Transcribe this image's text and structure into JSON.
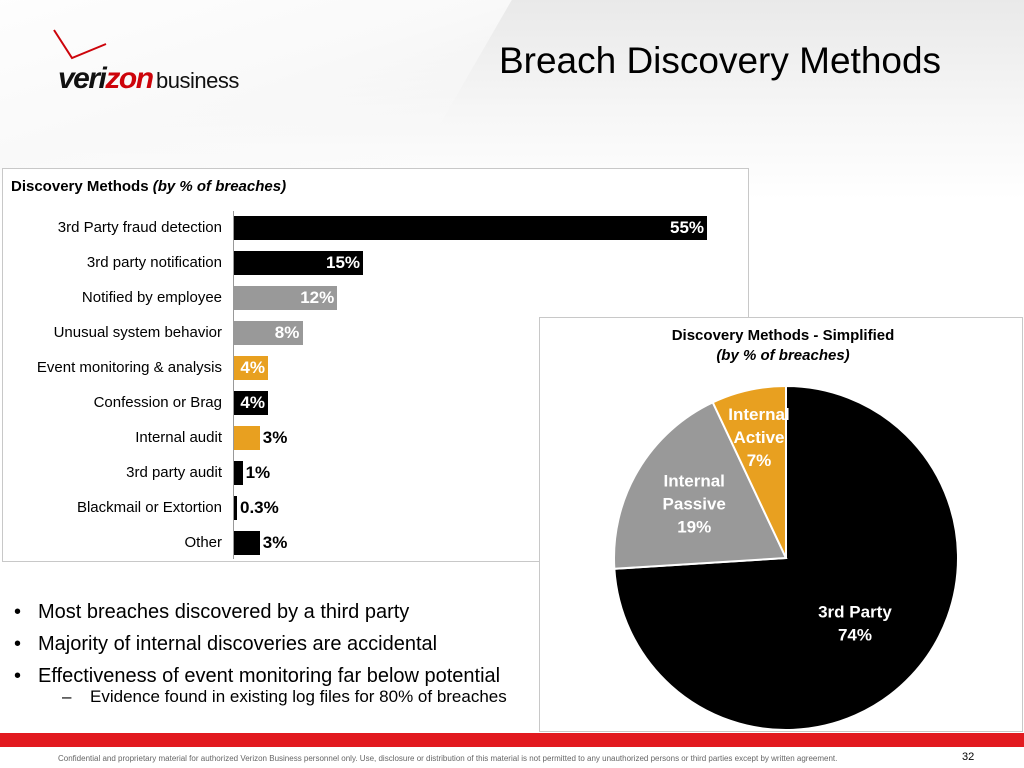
{
  "brand": {
    "logo_text_part1": "veri",
    "logo_text_part2": "zon",
    "logo_text_part3": "business",
    "brand_red": "#cd040b"
  },
  "slide": {
    "title": "Breach Discovery Methods",
    "page_number": "32",
    "footer": "Confidential and proprietary material for authorized Verizon Business personnel only. Use, disclosure or distribution of this material is not permitted to any unauthorized persons or third parties except by written agreement."
  },
  "bullets": [
    "Most breaches discovered by a third party",
    "Majority of internal discoveries are accidental",
    "Effectiveness of event monitoring far below potential"
  ],
  "sub_bullets": [
    "Evidence found in existing log files for 80% of breaches"
  ],
  "chart_data": [
    {
      "type": "bar",
      "orientation": "horizontal",
      "title": "Discovery Methods",
      "subtitle": "(by % of breaches)",
      "categories": [
        "3rd Party fraud detection",
        "3rd party notification",
        "Notified by employee",
        "Unusual system behavior",
        "Event monitoring & analysis",
        "Confession or Brag",
        "Internal audit",
        "3rd party audit",
        "Blackmail or Extortion",
        "Other"
      ],
      "values": [
        55,
        15,
        12,
        8,
        4,
        4,
        3,
        1,
        0.3,
        3
      ],
      "data_labels": [
        "55%",
        "15%",
        "12%",
        "8%",
        "4%",
        "4%",
        "3%",
        "1%",
        "0.3%",
        "3%"
      ],
      "bar_colors": [
        "#000000",
        "#000000",
        "#999999",
        "#999999",
        "#e8a020",
        "#000000",
        "#e8a020",
        "#000000",
        "#000000",
        "#000000"
      ],
      "xlim": [
        0,
        55
      ],
      "unit": "%"
    },
    {
      "type": "pie",
      "title": "Discovery Methods - Simplified",
      "subtitle": "(by % of breaches)",
      "slices": [
        {
          "label_line1": "3rd Party",
          "label_line2": "",
          "value": 74,
          "value_label": "74%",
          "color": "#000000"
        },
        {
          "label_line1": "Internal",
          "label_line2": "Passive",
          "value": 19,
          "value_label": "19%",
          "color": "#999999"
        },
        {
          "label_line1": "Internal",
          "label_line2": "Active",
          "value": 7,
          "value_label": "7%",
          "color": "#e8a020"
        }
      ]
    }
  ]
}
